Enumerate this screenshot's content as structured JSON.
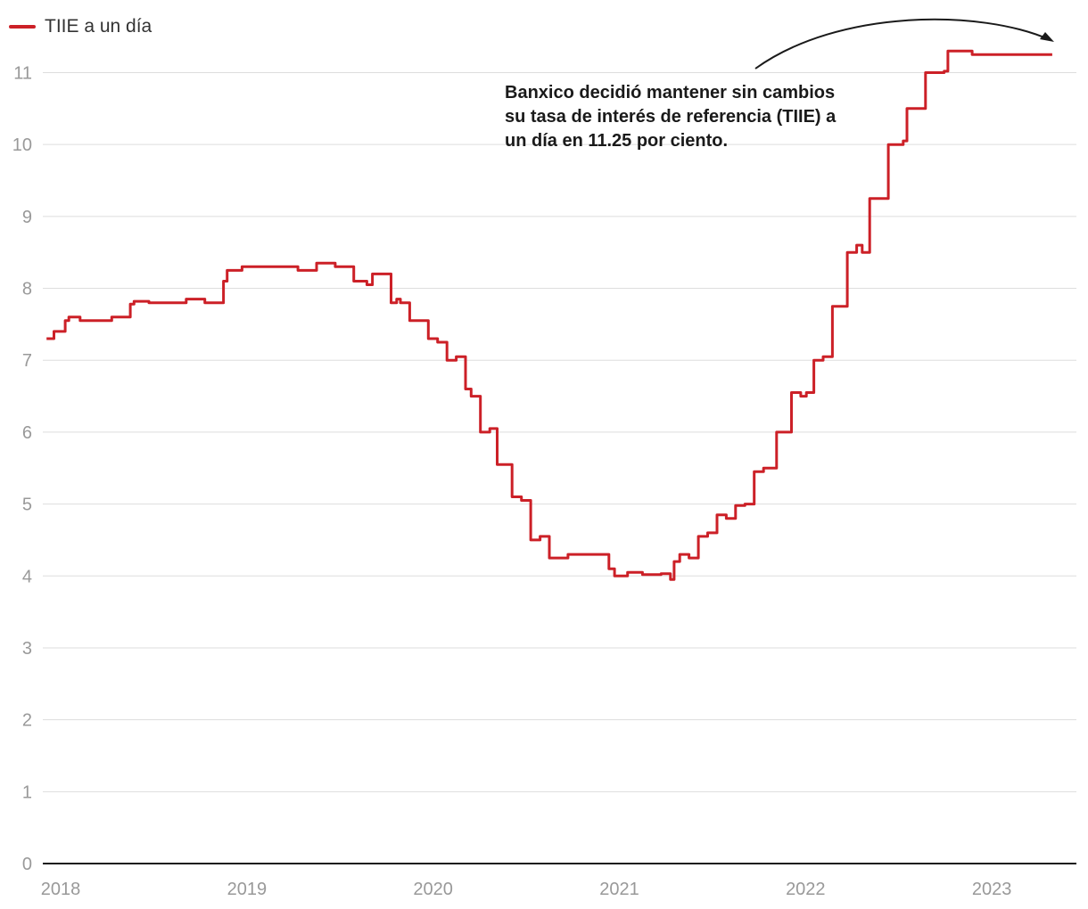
{
  "legend": {
    "label": "TIIE a un día",
    "color": "#cc2027"
  },
  "annotation": {
    "lines": [
      "Banxico decidió mantener sin cambios",
      "su tasa de interés de referencia (TIIE) a",
      "un día en 11.25 por ciento."
    ]
  },
  "chart_data": {
    "type": "line",
    "title": "",
    "xlabel": "",
    "ylabel": "",
    "xlim": [
      2018.0,
      2023.55
    ],
    "ylim": [
      0,
      11.7
    ],
    "grid": true,
    "legend_position": "top-left",
    "x_ticks": [
      "2018",
      "2019",
      "2020",
      "2021",
      "2022",
      "2023"
    ],
    "y_ticks": [
      "0",
      "1",
      "2",
      "3",
      "4",
      "5",
      "6",
      "7",
      "8",
      "9",
      "10",
      "11"
    ],
    "series": [
      {
        "name": "TIIE a un día",
        "color": "#cc2027",
        "x": [
          2018.0,
          2018.04,
          2018.1,
          2018.12,
          2018.18,
          2018.25,
          2018.35,
          2018.45,
          2018.47,
          2018.55,
          2018.65,
          2018.75,
          2018.85,
          2018.95,
          2018.97,
          2019.05,
          2019.15,
          2019.25,
          2019.35,
          2019.45,
          2019.55,
          2019.63,
          2019.65,
          2019.72,
          2019.75,
          2019.85,
          2019.88,
          2019.9,
          2019.95,
          2020.05,
          2020.1,
          2020.15,
          2020.2,
          2020.25,
          2020.28,
          2020.33,
          2020.38,
          2020.42,
          2020.5,
          2020.55,
          2020.6,
          2020.65,
          2020.7,
          2020.75,
          2020.8,
          2020.85,
          2020.9,
          2020.95,
          2021.02,
          2021.05,
          2021.12,
          2021.2,
          2021.3,
          2021.35,
          2021.37,
          2021.4,
          2021.45,
          2021.5,
          2021.55,
          2021.6,
          2021.65,
          2021.7,
          2021.75,
          2021.8,
          2021.85,
          2021.88,
          2021.92,
          2021.95,
          2022.0,
          2022.05,
          2022.08,
          2022.12,
          2022.17,
          2022.22,
          2022.25,
          2022.3,
          2022.35,
          2022.38,
          2022.42,
          2022.5,
          2022.52,
          2022.6,
          2022.62,
          2022.7,
          2022.72,
          2022.82,
          2022.84,
          2022.95,
          2022.97,
          2023.1,
          2023.12,
          2023.2,
          2023.22,
          2023.28,
          2023.35,
          2023.4
        ],
        "values": [
          7.3,
          7.4,
          7.55,
          7.6,
          7.55,
          7.55,
          7.6,
          7.78,
          7.82,
          7.8,
          7.8,
          7.85,
          7.8,
          8.1,
          8.25,
          8.3,
          8.3,
          8.3,
          8.25,
          8.35,
          8.3,
          8.3,
          8.1,
          8.05,
          8.2,
          7.8,
          7.85,
          7.8,
          7.55,
          7.3,
          7.25,
          7.0,
          7.05,
          6.6,
          6.5,
          6.0,
          6.05,
          5.55,
          5.1,
          5.05,
          4.5,
          4.55,
          4.25,
          4.25,
          4.3,
          4.3,
          4.3,
          4.3,
          4.1,
          4.0,
          4.05,
          4.02,
          4.03,
          3.95,
          4.2,
          4.3,
          4.25,
          4.55,
          4.6,
          4.85,
          4.8,
          4.98,
          5.0,
          5.45,
          5.5,
          5.5,
          6.0,
          6.0,
          6.55,
          6.5,
          6.55,
          7.0,
          7.05,
          7.75,
          7.75,
          8.5,
          8.6,
          8.5,
          9.25,
          9.25,
          10.0,
          10.05,
          10.5,
          10.5,
          11.0,
          11.02,
          11.3,
          11.3,
          11.25,
          11.25,
          11.25,
          11.25,
          11.25,
          11.25,
          11.25,
          11.25
        ]
      }
    ]
  }
}
